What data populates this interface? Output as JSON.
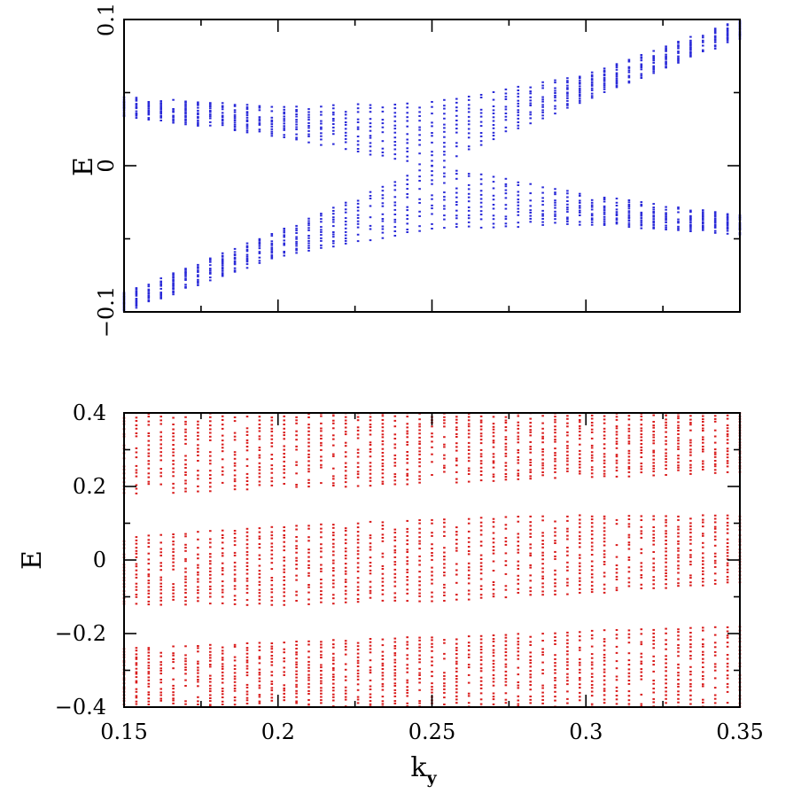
{
  "chart_data": [
    {
      "type": "scatter",
      "color": "#2a2ad8",
      "xlim": [
        0.15,
        0.35
      ],
      "ylim": [
        -0.1,
        0.1
      ],
      "ylabel": "E",
      "xlabel": "",
      "yticks": [
        -0.1,
        0,
        0.1
      ],
      "ytick_labels": [
        "-0.1",
        "0",
        "0.1"
      ],
      "xticks": [
        0.15,
        0.2,
        0.25,
        0.3,
        0.35
      ],
      "xtick_labels": [],
      "x_minor_step": 0.025,
      "y_minor_step": 0.05,
      "grid": false,
      "legend": "none",
      "x_sampling": {
        "start": 0.15,
        "end": 0.35,
        "step": 0.004
      },
      "series": [
        {
          "role": "upper_band_top",
          "x": [
            0.15,
            0.2,
            0.25,
            0.3,
            0.35
          ],
          "y": [
            0.047,
            0.04,
            0.043,
            0.062,
            0.1
          ]
        },
        {
          "role": "upper_band_bottom",
          "x": [
            0.15,
            0.2,
            0.25,
            0.3,
            0.35
          ],
          "y": [
            0.034,
            0.02,
            0.0,
            0.045,
            0.087
          ]
        },
        {
          "role": "lower_band_top",
          "x": [
            0.15,
            0.2,
            0.25,
            0.3,
            0.35
          ],
          "y": [
            -0.087,
            -0.045,
            0.0,
            -0.02,
            -0.034
          ]
        },
        {
          "role": "lower_band_bottom",
          "x": [
            0.15,
            0.2,
            0.25,
            0.3,
            0.35
          ],
          "y": [
            -0.1,
            -0.062,
            -0.043,
            -0.04,
            -0.047
          ]
        }
      ]
    },
    {
      "type": "scatter",
      "color": "#d91c1c",
      "xlim": [
        0.15,
        0.35
      ],
      "ylim": [
        -0.4,
        0.4
      ],
      "ylabel": "E",
      "xlabel": "k",
      "xlabel_subscript": "y",
      "yticks": [
        -0.4,
        -0.2,
        0,
        0.2,
        0.4
      ],
      "ytick_labels": [
        "-0.4",
        "-0.2",
        "0",
        "0.2",
        "0.4"
      ],
      "xticks": [
        0.15,
        0.2,
        0.25,
        0.3,
        0.35
      ],
      "xtick_labels": [
        "0.15",
        "0.2",
        "0.25",
        "0.3",
        "0.35"
      ],
      "x_minor_step": 0.025,
      "y_minor_step": 0.1,
      "grid": false,
      "legend": "none",
      "x_sampling": {
        "start": 0.15,
        "end": 0.35,
        "step": 0.004
      },
      "series": [
        {
          "role": "top_band_top",
          "x": [
            0.15,
            0.35
          ],
          "y": [
            0.4,
            0.4
          ]
        },
        {
          "role": "top_band_bottom",
          "x": [
            0.15,
            0.35
          ],
          "y": [
            0.18,
            0.24
          ]
        },
        {
          "role": "middle_band_top",
          "x": [
            0.15,
            0.2,
            0.25,
            0.3,
            0.35
          ],
          "y": [
            0.06,
            0.09,
            0.11,
            0.12,
            0.12
          ]
        },
        {
          "role": "middle_band_bottom",
          "x": [
            0.15,
            0.2,
            0.25,
            0.3,
            0.35
          ],
          "y": [
            -0.12,
            -0.12,
            -0.11,
            -0.09,
            -0.06
          ]
        },
        {
          "role": "bottom_band_top",
          "x": [
            0.15,
            0.35
          ],
          "y": [
            -0.24,
            -0.18
          ]
        },
        {
          "role": "bottom_band_bottom",
          "x": [
            0.15,
            0.35
          ],
          "y": [
            -0.4,
            -0.4
          ]
        }
      ]
    }
  ]
}
